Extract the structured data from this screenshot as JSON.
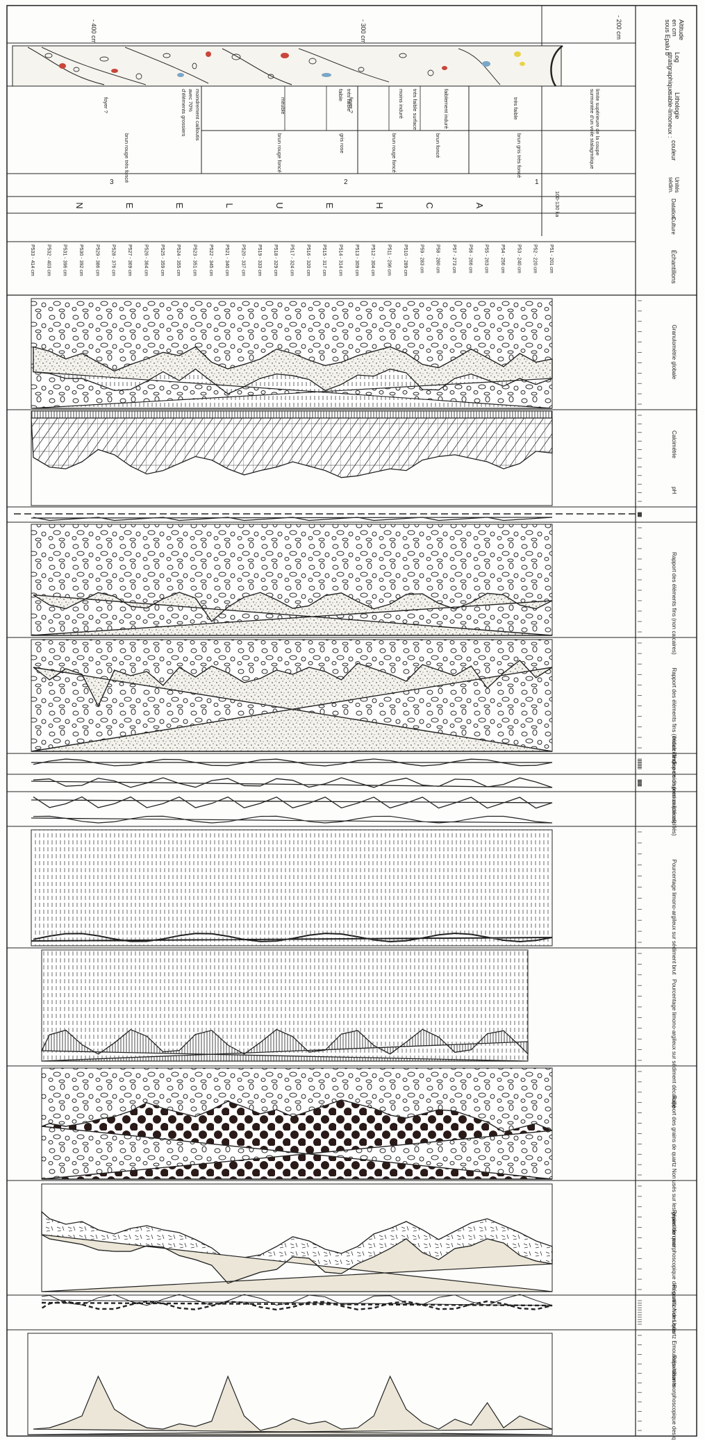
{
  "header": {
    "altitude": [
      "Altitude",
      "en cm",
      "sous Epalu b"
    ],
    "log": [
      "Log",
      "stratigraphique"
    ],
    "lithology": [
      "Lithologie",
      "sable-limoneux :"
    ],
    "color": "couleur",
    "units": [
      "Unités",
      "sédim."
    ],
    "dating": "Datation",
    "culture": "Culture",
    "samples": "Échantillons"
  },
  "depth_labels": [
    "- 200 cm",
    "- 300 cm",
    "- 400 cm"
  ],
  "lithology_labels": [
    "limite supérieure de la coupe",
    "surmontée d'un voile stalagmitique",
    "très faible",
    "faiblement induré",
    "très faible surface",
    "moins induré",
    "très faible",
    "faible",
    "meuble",
    "moindrement cailloutis",
    "avec 70%",
    "d'éléments grossiers",
    "foyer ?",
    "foyer ?"
  ],
  "color_labels": [
    "brun gris très foncé",
    "brun foncé",
    "brun rouge foncé",
    "gris rose",
    "brun rouge foncé",
    "brun rouge très foncé"
  ],
  "unit_labels": [
    "1",
    "2",
    "3"
  ],
  "dating_value": "100-130 ka",
  "culture_letters": [
    "A",
    "C",
    "H",
    "E",
    "U",
    "L",
    "E",
    "E",
    "N"
  ],
  "samples": [
    "P51 - 201 cm",
    "P52 - 220 cm",
    "P53 - 240 cm",
    "P54 - 256 cm",
    "P55 - 263 cm",
    "P56 - 266 cm",
    "P57 - 273 cm",
    "P58 - 280 cm",
    "P59 - 283 cm",
    "P510 - 289 cm",
    "P511 - 296 cm",
    "P512 - 304 cm",
    "P513 - 309 cm",
    "P514 - 314 cm",
    "P515 - 317 cm",
    "P516 - 320 cm",
    "P517 - 324 cm",
    "P518 - 329 cm",
    "P519 - 333 cm",
    "P520 - 337 cm",
    "P521 - 340 cm",
    "P522 - 345 cm",
    "P523 - 351 cm",
    "P524 - 355 cm",
    "P525 - 359 cm",
    "P526 - 364 cm",
    "P527 - 369 cm",
    "P528 - 376 cm",
    "P529 - 386 cm",
    "P530 - 392 cm",
    "P531 - 396 cm",
    "P532 - 403 cm",
    "P533 - 414 cm"
  ],
  "panel_titles": [
    "Granulométrie globale",
    "Calcimétrie",
    "pH",
    "Rapport des éléments fins (non calcaires)",
    "Rapport des éléments fins (décalcifiés)",
    "Indice de dispersion (non calcaires)",
    "Indice de dispersion (décalcifiés)",
    "Pourcentage limono-argileux sur sédiment brut",
    "Pourcentage limono-argileux sur sédiment décalcifié",
    "Rapport des grains de quartz Non usés sur les grains de quartz Émoussés dans la fraction comprise entre 0,5 et 0,315 mm",
    "Répartition morphoscopique des quartz Non Usés",
    "Répartition des quartz Emoussés-luisants",
    "Répartition morphoscopique des quartz Émoussés"
  ],
  "colors": {
    "ink": "#1a1a1a",
    "paper": "#fdfdfb",
    "beige": "#ebe6d7",
    "dots": "#2a1a18",
    "accent_red": "#c9463a",
    "accent_blue": "#7aa6c8",
    "accent_yellow": "#e8d24a"
  },
  "chart_data": [
    {
      "type": "area",
      "title": "Granulométrie globale",
      "series": [
        {
          "name": "cailloux",
          "values": [
            55,
            58,
            50,
            62,
            54,
            46,
            55,
            63,
            60,
            50,
            44,
            48,
            52,
            58,
            61,
            56,
            50,
            46,
            55,
            60,
            64,
            58,
            44,
            52,
            49,
            55,
            60,
            66,
            58,
            50,
            55,
            48,
            44
          ]
        }
      ]
    },
    {
      "type": "area",
      "title": "Calcimétrie",
      "series": [
        {
          "name": "calcaire",
          "values": [
            40,
            38,
            52,
            58,
            50,
            46,
            42,
            44,
            48,
            60,
            58,
            62,
            66,
            68,
            60,
            55,
            50,
            56,
            60,
            65,
            58,
            48,
            44,
            52,
            60,
            64,
            55,
            42,
            36,
            50,
            58,
            56,
            45
          ]
        }
      ]
    }
  ]
}
